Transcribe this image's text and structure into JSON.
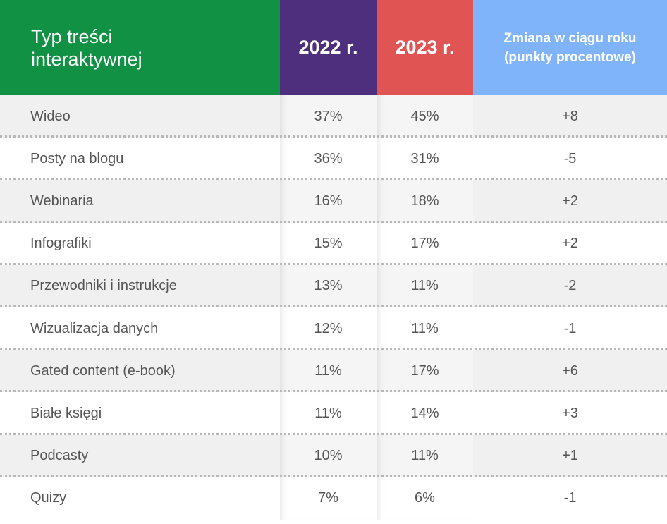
{
  "colors": {
    "type_header": "#109143",
    "col_2022": "#4d2f7e",
    "col_2023": "#e05454",
    "col_change": "#7fb4fa"
  },
  "chart_data": {
    "type": "table",
    "columns": [
      "Typ treści interaktywnej",
      "2022 r.",
      "2023 r.",
      "Zmiana w ciągu roku (punkty procentowe)"
    ],
    "rows": [
      {
        "type": "Wideo",
        "y2022": "37%",
        "y2023": "45%",
        "change": "+8"
      },
      {
        "type": "Posty na blogu",
        "y2022": "36%",
        "y2023": "31%",
        "change": "-5"
      },
      {
        "type": "Webinaria",
        "y2022": "16%",
        "y2023": "18%",
        "change": "+2"
      },
      {
        "type": "Infografiki",
        "y2022": "15%",
        "y2023": "17%",
        "change": "+2"
      },
      {
        "type": "Przewodniki i instrukcje",
        "y2022": "13%",
        "y2023": "11%",
        "change": "-2"
      },
      {
        "type": "Wizualizacja danych",
        "y2022": "12%",
        "y2023": "11%",
        "change": "-1"
      },
      {
        "type": "Gated content (e-book)",
        "y2022": "11%",
        "y2023": "17%",
        "change": "+6"
      },
      {
        "type": "Białe księgi",
        "y2022": "11%",
        "y2023": "14%",
        "change": "+3"
      },
      {
        "type": "Podcasty",
        "y2022": "10%",
        "y2023": "11%",
        "change": "+1"
      },
      {
        "type": "Quizy",
        "y2022": "7%",
        "y2023": "6%",
        "change": "-1"
      }
    ]
  }
}
